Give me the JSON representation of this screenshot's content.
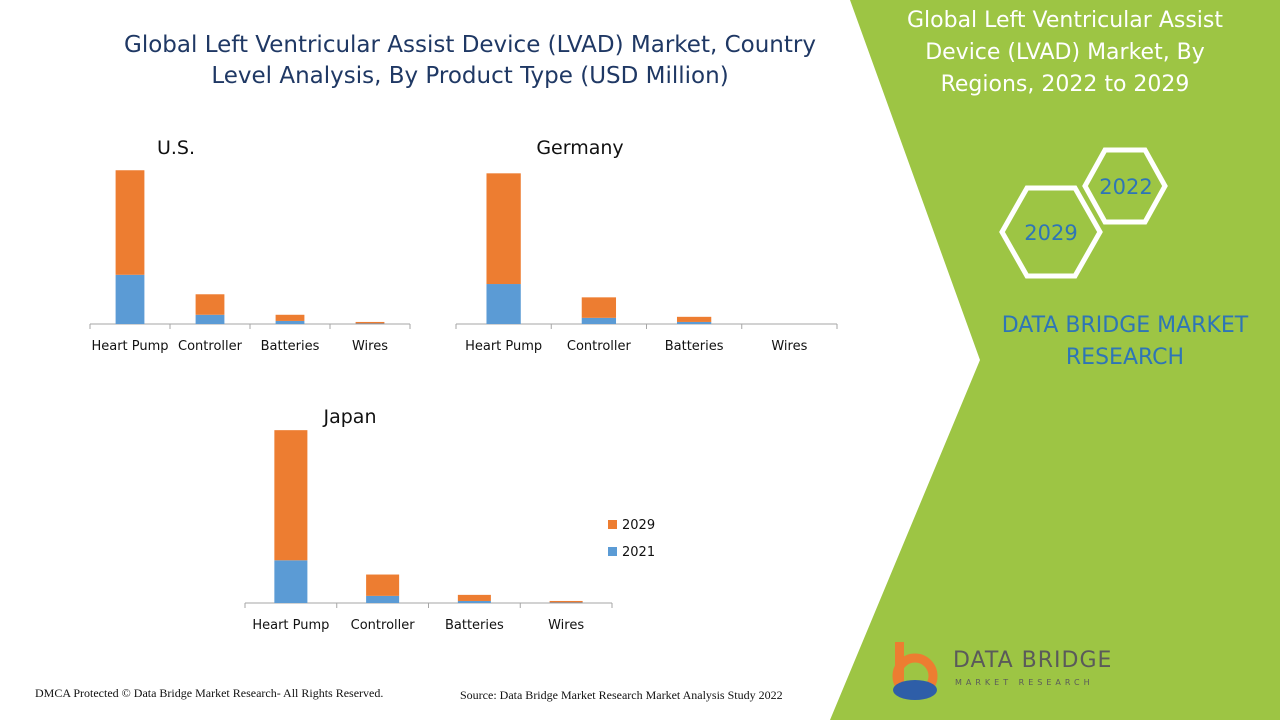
{
  "title": "Global Left Ventricular Assist Device (LVAD) Market, Country Level Analysis, By Product Type (USD Million)",
  "right_panel": {
    "title": "Global Left Ventricular Assist Device (LVAD) Market, By Regions, 2022 to 2029",
    "hex_top": "2022",
    "hex_bottom": "2029",
    "brand": "DATA BRIDGE MARKET RESEARCH",
    "panel_color": "#9dc544"
  },
  "footer": {
    "left": "DMCA Protected © Data Bridge Market Research- All Rights Reserved.",
    "right": "Source: Data Bridge Market Research Market Analysis Study 2022"
  },
  "logo": {
    "name": "DATA BRIDGE",
    "sub": "MARKET RESEARCH"
  },
  "colors": {
    "s2021": "#5b9bd5",
    "s2029": "#ed7d31",
    "axis": "#a6a6a6"
  },
  "chart_data": [
    {
      "type": "bar",
      "stacked": true,
      "title": "U.S.",
      "categories": [
        "Heart Pump",
        "Controller",
        "Batteries",
        "Wires"
      ],
      "series": [
        {
          "name": "2021",
          "values": [
            48,
            9,
            3,
            0.5
          ]
        },
        {
          "name": "2029",
          "values": [
            102,
            20,
            6,
            1.5
          ]
        }
      ],
      "ylim": [
        0,
        160
      ]
    },
    {
      "type": "bar",
      "stacked": true,
      "title": "Germany",
      "categories": [
        "Heart Pump",
        "Controller",
        "Batteries",
        "Wires"
      ],
      "series": [
        {
          "name": "2021",
          "values": [
            39,
            6,
            2,
            0
          ]
        },
        {
          "name": "2029",
          "values": [
            108,
            20,
            5,
            0
          ]
        }
      ],
      "ylim": [
        0,
        160
      ]
    },
    {
      "type": "bar",
      "stacked": true,
      "title": "Japan",
      "categories": [
        "Heart Pump",
        "Controller",
        "Batteries",
        "Wires"
      ],
      "series": [
        {
          "name": "2021",
          "values": [
            42,
            7,
            2,
            0.5
          ]
        },
        {
          "name": "2029",
          "values": [
            128,
            21,
            6,
            1.5
          ]
        }
      ],
      "ylim": [
        0,
        180
      ],
      "legend": "right"
    }
  ]
}
